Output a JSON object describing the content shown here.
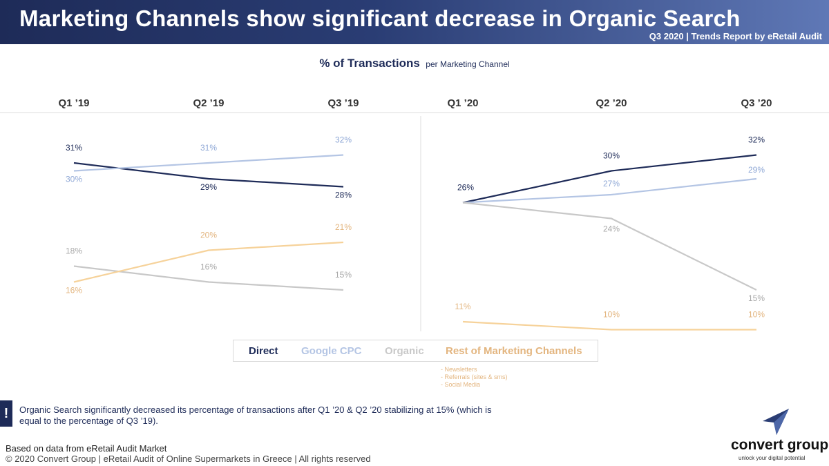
{
  "header": {
    "title": "Marketing Channels show significant decrease in Organic Search",
    "subtitle": "Q3 2020 | Trends Report by eRetail Audit"
  },
  "chart_title": {
    "main": "% of Transactions",
    "sub": "per Marketing Channel"
  },
  "chart_data": {
    "type": "line",
    "title": "% of Transactions per Marketing Channel",
    "panels": [
      {
        "categories": [
          "Q1 ’19",
          "Q2 ’19",
          "Q3 ’19"
        ],
        "series": [
          {
            "name": "Direct",
            "values": [
              31,
              29,
              28
            ]
          },
          {
            "name": "Google CPC",
            "values": [
              30,
              31,
              32
            ]
          },
          {
            "name": "Organic",
            "values": [
              18,
              16,
              15
            ]
          },
          {
            "name": "Rest of Marketing Channels",
            "values": [
              16,
              20,
              21
            ]
          }
        ]
      },
      {
        "categories": [
          "Q1 ’20",
          "Q2 ’20",
          "Q3 ’20"
        ],
        "series": [
          {
            "name": "Direct",
            "values": [
              26,
              30,
              32
            ]
          },
          {
            "name": "Google CPC",
            "values": [
              26,
              27,
              29
            ]
          },
          {
            "name": "Organic",
            "values": [
              26,
              24,
              15
            ]
          },
          {
            "name": "Rest of Marketing Channels",
            "values": [
              11,
              10,
              10
            ]
          }
        ]
      }
    ],
    "data_labels": [
      [
        "31%",
        "29%",
        "28%",
        "30%",
        "31%",
        "32%",
        "18%",
        "16%",
        "15%",
        "16%",
        "20%",
        "21%"
      ],
      [
        "26%",
        "30%",
        "32%",
        "27%",
        "29%",
        "24%",
        "15%",
        "11%",
        "10%",
        "10%"
      ]
    ],
    "unit": "%",
    "legend_position": "bottom",
    "grid": false
  },
  "legend": [
    "Direct",
    "Google CPC",
    "Organic",
    "Rest of Marketing Channels"
  ],
  "colors": {
    "direct": "#1e2b58",
    "google_cpc": "#b4c5e4",
    "organic": "#c8c8c8",
    "rest": "#f6d29a",
    "google_cpc_label": "#8fa8d6",
    "organic_label": "#a8a8a8",
    "rest_label": "#e3b57f"
  },
  "rest_channels_notes": [
    "- Newsletters",
    "- Referrals (sites & sms)",
    "- Social Media"
  ],
  "insight": "Organic Search significantly decreased its percentage of transactions after Q1 ’20 & Q2 ’20 stabilizing at 15% (which is equal to the percentage of Q3 ’19).",
  "insight_icon": "!",
  "footer": {
    "source": "Based on data from eRetail Audit Market",
    "copyright": "© 2020 Convert Group | eRetail Audit of Online Supermarkets in Greece | All rights reserved"
  },
  "logo": {
    "name": "convert group",
    "tagline": "unlock your digital potential",
    "icon": "paper-plane-icon"
  }
}
